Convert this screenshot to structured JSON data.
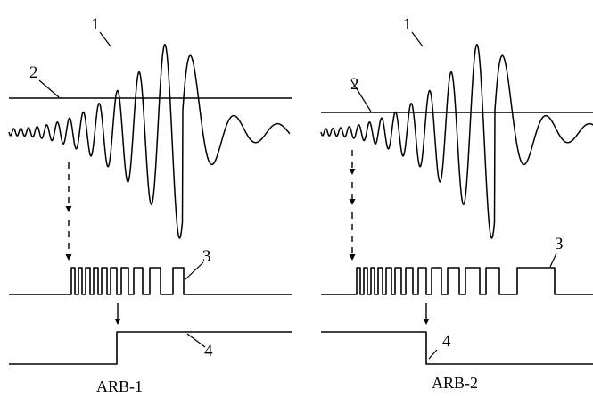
{
  "panels": [
    {
      "caption": "ARB-1",
      "labels": {
        "signal": "1",
        "threshold": "2",
        "pulses": "3",
        "output": "4"
      }
    },
    {
      "caption": "ARB-2",
      "labels": {
        "signal": "1",
        "threshold": "2",
        "pulses": "3",
        "output": "4"
      }
    }
  ],
  "stroke_color": "#000000"
}
